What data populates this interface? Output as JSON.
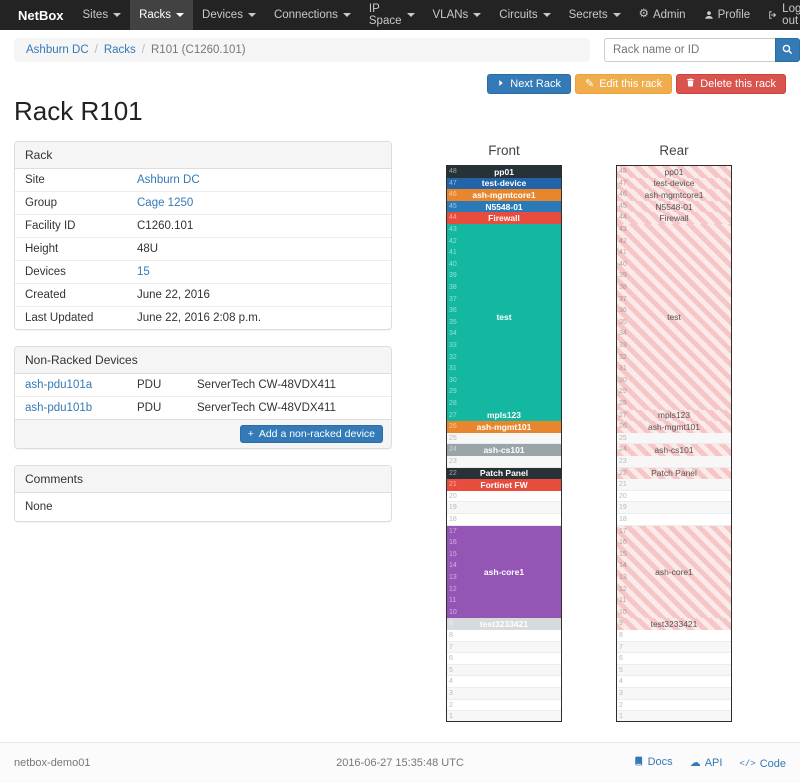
{
  "navbar": {
    "brand": "NetBox",
    "items": [
      {
        "label": "Sites",
        "active": false
      },
      {
        "label": "Racks",
        "active": true
      },
      {
        "label": "Devices",
        "active": false
      },
      {
        "label": "Connections",
        "active": false
      },
      {
        "label": "IP Space",
        "active": false
      },
      {
        "label": "VLANs",
        "active": false
      },
      {
        "label": "Circuits",
        "active": false
      },
      {
        "label": "Secrets",
        "active": false
      }
    ],
    "admin_label": "Admin",
    "profile_label": "Profile",
    "logout_label": "Log out"
  },
  "breadcrumb": {
    "site": "Ashburn DC",
    "section": "Racks",
    "current": "R101 (C1260.101)"
  },
  "search": {
    "placeholder": "Rack name or ID"
  },
  "actions": {
    "next_label": "Next Rack",
    "edit_label": "Edit this rack",
    "delete_label": "Delete this rack"
  },
  "page_title": "Rack R101",
  "rack_panel": {
    "title": "Rack",
    "rows": [
      {
        "label": "Site",
        "value": "Ashburn DC"
      },
      {
        "label": "Group",
        "value": "Cage 1250"
      },
      {
        "label": "Facility ID",
        "value": "C1260.101"
      },
      {
        "label": "Height",
        "value": "48U"
      },
      {
        "label": "Devices",
        "value": "15"
      },
      {
        "label": "Created",
        "value": "June 22, 2016"
      },
      {
        "label": "Last Updated",
        "value": "June 22, 2016 2:08 p.m."
      }
    ]
  },
  "nonracked_panel": {
    "title": "Non-Racked Devices",
    "devices": [
      {
        "name": "ash-pdu101a",
        "role": "PDU",
        "type": "ServerTech CW-48VDX411"
      },
      {
        "name": "ash-pdu101b",
        "role": "PDU",
        "type": "ServerTech CW-48VDX411"
      }
    ],
    "add_label": "Add a non-racked device"
  },
  "comments_panel": {
    "title": "Comments",
    "content": "None"
  },
  "elevation": {
    "front_title": "Front",
    "rear_title": "Rear",
    "units_total": 48,
    "devices": [
      {
        "name": "pp01",
        "top_unit": 48,
        "u_height": 1,
        "color": "#263238",
        "full_depth": true
      },
      {
        "name": "test-device",
        "top_unit": 47,
        "u_height": 1,
        "color": "#2264a8",
        "full_depth": true
      },
      {
        "name": "ash-mgmtcore1",
        "top_unit": 46,
        "u_height": 1,
        "color": "#e8862d",
        "full_depth": true
      },
      {
        "name": "N5548-01",
        "top_unit": 45,
        "u_height": 1,
        "color": "#2a7ab9",
        "full_depth": true
      },
      {
        "name": "Firewall",
        "top_unit": 44,
        "u_height": 1,
        "color": "#e84c3d",
        "full_depth": true
      },
      {
        "name": "test",
        "top_unit": 43,
        "u_height": 16,
        "color": "#14b8a0",
        "full_depth": true
      },
      {
        "name": "mpls123",
        "top_unit": 27,
        "u_height": 1,
        "color": "#14b8a0",
        "full_depth": true
      },
      {
        "name": "ash-mgmt101",
        "top_unit": 26,
        "u_height": 1,
        "color": "#e8862d",
        "full_depth": true
      },
      {
        "name": "ash-cs101",
        "top_unit": 24,
        "u_height": 1,
        "color": "#9aa5a9",
        "full_depth": true
      },
      {
        "name": "Patch Panel",
        "top_unit": 22,
        "u_height": 1,
        "color": "#263238",
        "full_depth": true
      },
      {
        "name": "Fortinet FW",
        "top_unit": 21,
        "u_height": 1,
        "color": "#e84c3d",
        "full_depth": false
      },
      {
        "name": "ash-core1",
        "top_unit": 17,
        "u_height": 8,
        "color": "#9455b5",
        "full_depth": true
      },
      {
        "name": "test3233421",
        "top_unit": 9,
        "u_height": 1,
        "color": "#d8dbde",
        "full_depth": true
      }
    ]
  },
  "footer": {
    "hostname": "netbox-demo01",
    "timestamp": "2016-06-27 15:35:48 UTC",
    "docs_label": "Docs",
    "api_label": "API",
    "code_label": "Code"
  }
}
